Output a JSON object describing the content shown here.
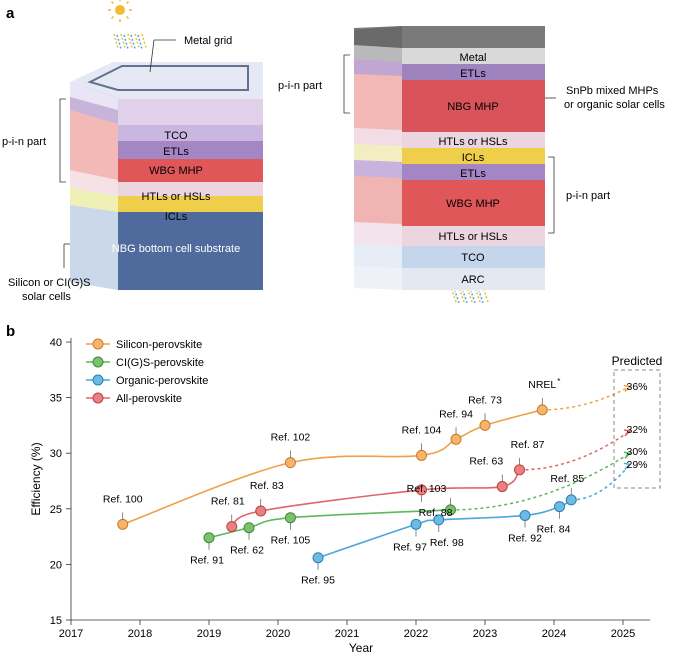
{
  "panel_a": {
    "label": "a",
    "left_stack": {
      "layers": [
        "TCO",
        "ETLs",
        "WBG MHP",
        "HTLs or HSLs",
        "ICLs",
        "NBG bottom cell substrate"
      ],
      "annotations": {
        "metal_grid": "Metal grid",
        "pin_part": "p-i-n part",
        "silicon_line1": "Silicon or CI(G)S",
        "silicon_line2": "solar cells"
      }
    },
    "right_stack": {
      "layers": [
        "Metal",
        "ETLs",
        "NBG MHP",
        "HTLs or HSLs",
        "ICLs",
        "ETLs",
        "WBG MHP",
        "HTLs or HSLs",
        "TCO",
        "ARC"
      ],
      "annotations": {
        "pin_part_top": "p-i-n part",
        "pin_part_bottom": "p-i-n part",
        "snpb_line1": "SnPb mixed MHPs",
        "snpb_line2": "or organic solar cells"
      }
    }
  },
  "panel_b": {
    "label": "b",
    "chart_data": {
      "type": "line",
      "xlabel": "Year",
      "ylabel": "Efficiency (%)",
      "xlim": [
        2017,
        2025.5
      ],
      "ylim": [
        15,
        40
      ],
      "xticks": [
        2017,
        2018,
        2019,
        2020,
        2021,
        2022,
        2023,
        2024,
        2025
      ],
      "yticks": [
        15,
        20,
        25,
        30,
        35,
        40
      ],
      "legend_position": "top-left",
      "predicted_label": "Predicted",
      "series": [
        {
          "name": "Silicon-perovskite",
          "color": "#f0a04b",
          "points": [
            {
              "x": 2017.75,
              "y": 23.6,
              "ref": "Ref. 100"
            },
            {
              "x": 2020.18,
              "y": 29.15,
              "ref": "Ref. 102"
            },
            {
              "x": 2022.08,
              "y": 29.8,
              "ref": "Ref. 104"
            },
            {
              "x": 2022.58,
              "y": 31.25,
              "ref": "Ref. 94"
            },
            {
              "x": 2023.0,
              "y": 32.5,
              "ref": "Ref. 73"
            },
            {
              "x": 2023.83,
              "y": 33.9,
              "ref": "NREL"
            }
          ],
          "predicted": 36
        },
        {
          "name": "CI(G)S-perovskite",
          "color": "#5cb85c",
          "points": [
            {
              "x": 2019.0,
              "y": 22.4,
              "ref": "Ref. 91"
            },
            {
              "x": 2019.58,
              "y": 23.3,
              "ref": "Ref. 62"
            },
            {
              "x": 2020.18,
              "y": 24.2,
              "ref": "Ref. 105"
            },
            {
              "x": 2022.5,
              "y": 24.9,
              "ref": "Ref. 103"
            }
          ],
          "predicted": 30
        },
        {
          "name": "Organic-perovskite",
          "color": "#4da6d9",
          "points": [
            {
              "x": 2020.58,
              "y": 20.6,
              "ref": "Ref. 95"
            },
            {
              "x": 2022.0,
              "y": 23.6,
              "ref": "Ref. 97"
            },
            {
              "x": 2022.33,
              "y": 24.0,
              "ref": "Ref. 98"
            },
            {
              "x": 2023.58,
              "y": 24.4,
              "ref": "Ref. 92"
            },
            {
              "x": 2024.08,
              "y": 25.2,
              "ref": "Ref. 84"
            },
            {
              "x": 2024.25,
              "y": 25.8,
              "ref": "Ref. 85"
            }
          ],
          "predicted": 29
        },
        {
          "name": "All-perovskite",
          "color": "#e06666",
          "points": [
            {
              "x": 2019.33,
              "y": 23.4,
              "ref": "Ref. 81"
            },
            {
              "x": 2019.75,
              "y": 24.8,
              "ref": "Ref. 83"
            },
            {
              "x": 2022.08,
              "y": 26.7,
              "ref": "Ref. 88"
            },
            {
              "x": 2023.25,
              "y": 27.0,
              "ref": "Ref. 63"
            },
            {
              "x": 2023.5,
              "y": 28.5,
              "ref": "Ref. 87"
            }
          ],
          "predicted": 32
        }
      ],
      "predicted_labels": [
        "36%",
        "32%",
        "30%",
        "29%"
      ],
      "nrel_marker": "*"
    }
  }
}
